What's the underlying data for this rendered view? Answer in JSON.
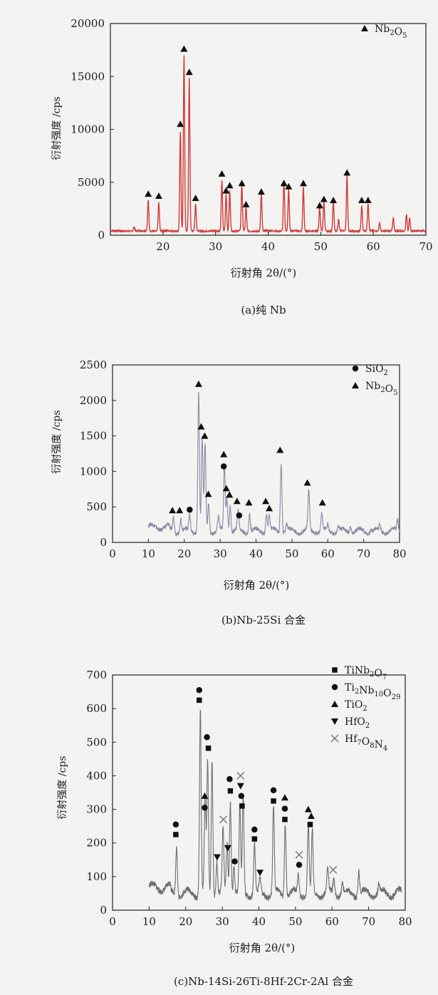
{
  "page": {
    "colors": {
      "background": "#f3f3f1",
      "axis": "#222222",
      "pattern_a": "#d23a3a",
      "pattern_b": "#8a8aa6",
      "pattern_c": "#6e6e6e",
      "marker": "#111111"
    }
  },
  "chart_data": [
    {
      "type": "line",
      "caption": "(a)纯 Nb",
      "xlabel": "衍射角 2θ/(°)",
      "ylabel": "衍射强度 /cps",
      "xlim": [
        10,
        70
      ],
      "ylim": [
        0,
        20000
      ],
      "xticks": [
        20,
        30,
        40,
        50,
        60,
        70
      ],
      "yticks": [
        0,
        5000,
        10000,
        15000,
        20000
      ],
      "ytick_labels": [
        "0",
        "5000",
        "10000",
        "15000",
        "20000"
      ],
      "grid": false,
      "legend_position": "top-right",
      "legend": [
        {
          "marker": "triangle-up",
          "label": "Nb",
          "sub": "2",
          "label2": "O",
          "sub2": "5"
        }
      ],
      "baseline": 400,
      "peaks": [
        {
          "x": 14.5,
          "y": 800
        },
        {
          "x": 17.2,
          "y": 3300
        },
        {
          "x": 19.2,
          "y": 3100
        },
        {
          "x": 23.3,
          "y": 9800
        },
        {
          "x": 24.0,
          "y": 17000
        },
        {
          "x": 25.0,
          "y": 14800
        },
        {
          "x": 26.2,
          "y": 3000
        },
        {
          "x": 31.2,
          "y": 5200
        },
        {
          "x": 32.0,
          "y": 3900
        },
        {
          "x": 32.7,
          "y": 4200
        },
        {
          "x": 35.0,
          "y": 4700
        },
        {
          "x": 35.8,
          "y": 2600
        },
        {
          "x": 38.7,
          "y": 3900
        },
        {
          "x": 43.0,
          "y": 5200
        },
        {
          "x": 43.9,
          "y": 4300
        },
        {
          "x": 46.7,
          "y": 4600
        },
        {
          "x": 49.8,
          "y": 2600
        },
        {
          "x": 50.6,
          "y": 3200
        },
        {
          "x": 52.4,
          "y": 3200
        },
        {
          "x": 53.4,
          "y": 1500
        },
        {
          "x": 55.0,
          "y": 5600
        },
        {
          "x": 57.8,
          "y": 2800
        },
        {
          "x": 59.0,
          "y": 3000
        },
        {
          "x": 61.2,
          "y": 1200
        },
        {
          "x": 63.8,
          "y": 1600
        },
        {
          "x": 66.3,
          "y": 2000
        },
        {
          "x": 66.9,
          "y": 1600
        }
      ],
      "markers": [
        {
          "x": 17.2,
          "y": 3900,
          "type": "triangle-up"
        },
        {
          "x": 19.2,
          "y": 3700,
          "type": "triangle-up"
        },
        {
          "x": 23.3,
          "y": 10500,
          "type": "triangle-up"
        },
        {
          "x": 24.0,
          "y": 17600,
          "type": "triangle-up"
        },
        {
          "x": 25.0,
          "y": 15400,
          "type": "triangle-up"
        },
        {
          "x": 26.2,
          "y": 3500,
          "type": "triangle-up"
        },
        {
          "x": 31.2,
          "y": 5800,
          "type": "triangle-up"
        },
        {
          "x": 32.0,
          "y": 4200,
          "type": "triangle-up"
        },
        {
          "x": 32.7,
          "y": 4700,
          "type": "triangle-up"
        },
        {
          "x": 35.0,
          "y": 4900,
          "type": "triangle-up"
        },
        {
          "x": 35.8,
          "y": 2900,
          "type": "triangle-up"
        },
        {
          "x": 38.7,
          "y": 4100,
          "type": "triangle-up"
        },
        {
          "x": 43.0,
          "y": 4900,
          "type": "triangle-up"
        },
        {
          "x": 43.9,
          "y": 4600,
          "type": "triangle-up"
        },
        {
          "x": 46.7,
          "y": 4900,
          "type": "triangle-up"
        },
        {
          "x": 49.8,
          "y": 2800,
          "type": "triangle-up"
        },
        {
          "x": 50.6,
          "y": 3400,
          "type": "triangle-up"
        },
        {
          "x": 52.4,
          "y": 3300,
          "type": "triangle-up"
        },
        {
          "x": 55.0,
          "y": 5900,
          "type": "triangle-up"
        },
        {
          "x": 57.8,
          "y": 3300,
          "type": "triangle-up"
        },
        {
          "x": 59.0,
          "y": 3300,
          "type": "triangle-up"
        }
      ]
    },
    {
      "type": "line",
      "caption": "(b)Nb-25Si 合金",
      "xlabel": "衍射角 2θ/(°)",
      "ylabel": "衍射强度 /cps",
      "xlim": [
        0,
        80
      ],
      "ylim": [
        0,
        2500
      ],
      "xticks": [
        0,
        10,
        20,
        30,
        40,
        50,
        60,
        70,
        80
      ],
      "yticks": [
        0,
        500,
        1000,
        1500,
        2000,
        2500
      ],
      "ytick_labels": [
        "0",
        "500",
        "1000",
        "1500",
        "2000",
        "2500"
      ],
      "grid": false,
      "legend_position": "top-right",
      "legend": [
        {
          "marker": "circle",
          "label": "SiO",
          "sub": "2",
          "label2": "",
          "sub2": ""
        },
        {
          "marker": "triangle-up",
          "label": "Nb",
          "sub": "2",
          "label2": "O",
          "sub2": "5"
        }
      ],
      "series_x_range": [
        10,
        80
      ],
      "baseline": 160,
      "peaks": [
        {
          "x": 17.0,
          "y": 370
        },
        {
          "x": 19.0,
          "y": 340
        },
        {
          "x": 21.5,
          "y": 380
        },
        {
          "x": 24.0,
          "y": 2100
        },
        {
          "x": 25.0,
          "y": 1450
        },
        {
          "x": 25.8,
          "y": 1370
        },
        {
          "x": 26.8,
          "y": 550
        },
        {
          "x": 29.5,
          "y": 350
        },
        {
          "x": 31.2,
          "y": 1080
        },
        {
          "x": 31.9,
          "y": 640
        },
        {
          "x": 32.8,
          "y": 550
        },
        {
          "x": 35.0,
          "y": 420
        },
        {
          "x": 38.2,
          "y": 420
        },
        {
          "x": 42.9,
          "y": 420
        },
        {
          "x": 43.7,
          "y": 380
        },
        {
          "x": 47.0,
          "y": 1150
        },
        {
          "x": 48.5,
          "y": 260
        },
        {
          "x": 54.7,
          "y": 700
        },
        {
          "x": 58.3,
          "y": 400
        },
        {
          "x": 60.0,
          "y": 240
        },
        {
          "x": 63.0,
          "y": 220
        },
        {
          "x": 66.3,
          "y": 270
        },
        {
          "x": 72.0,
          "y": 200
        },
        {
          "x": 74.5,
          "y": 230
        },
        {
          "x": 79.5,
          "y": 310
        }
      ],
      "markers": [
        {
          "x": 16.7,
          "y": 450,
          "type": "triangle-up"
        },
        {
          "x": 18.7,
          "y": 450,
          "type": "triangle-up"
        },
        {
          "x": 21.5,
          "y": 460,
          "type": "circle"
        },
        {
          "x": 24.0,
          "y": 2230,
          "type": "triangle-up"
        },
        {
          "x": 24.7,
          "y": 1630,
          "type": "triangle-up"
        },
        {
          "x": 25.7,
          "y": 1500,
          "type": "triangle-up"
        },
        {
          "x": 26.7,
          "y": 680,
          "type": "triangle-up"
        },
        {
          "x": 31.0,
          "y": 1240,
          "type": "triangle-up"
        },
        {
          "x": 31.0,
          "y": 1070,
          "type": "circle"
        },
        {
          "x": 31.7,
          "y": 760,
          "type": "triangle-up"
        },
        {
          "x": 32.6,
          "y": 670,
          "type": "triangle-up"
        },
        {
          "x": 34.7,
          "y": 580,
          "type": "triangle-up"
        },
        {
          "x": 35.3,
          "y": 380,
          "type": "circle"
        },
        {
          "x": 38.0,
          "y": 560,
          "type": "triangle-up"
        },
        {
          "x": 42.7,
          "y": 580,
          "type": "triangle-up"
        },
        {
          "x": 43.7,
          "y": 480,
          "type": "triangle-up"
        },
        {
          "x": 46.7,
          "y": 1300,
          "type": "triangle-up"
        },
        {
          "x": 54.3,
          "y": 840,
          "type": "triangle-up"
        },
        {
          "x": 58.5,
          "y": 560,
          "type": "triangle-up"
        }
      ]
    },
    {
      "type": "line",
      "caption": "(c)Nb-14Si-26Ti-8Hf-2Cr-2Al 合金",
      "xlabel": "衍射角 2θ/(°)",
      "ylabel": "衍射强度 /cps",
      "xlim": [
        0,
        80
      ],
      "ylim": [
        0,
        700
      ],
      "xticks": [
        0,
        10,
        20,
        30,
        40,
        50,
        60,
        70,
        80
      ],
      "yticks": [
        0,
        100,
        200,
        300,
        400,
        500,
        600,
        700
      ],
      "ytick_labels": [
        "0",
        "100",
        "200",
        "300",
        "400",
        "500",
        "600",
        "700"
      ],
      "grid": false,
      "legend_position": "top-right",
      "legend": [
        {
          "marker": "square",
          "label": "TiNb",
          "sub": "2",
          "label2": "O",
          "sub2": "7"
        },
        {
          "marker": "circle",
          "label": "Ti",
          "sub": "2",
          "label2": "Nb",
          "sub2": "10",
          "label3": "O",
          "sub3": "29"
        },
        {
          "marker": "triangle-up",
          "label": "TiO",
          "sub": "2",
          "label2": "",
          "sub2": ""
        },
        {
          "marker": "triangle-down",
          "label": "HfO",
          "sub": "2",
          "label2": "",
          "sub2": ""
        },
        {
          "marker": "cross",
          "label": "Hf",
          "sub": "7",
          "label2": "O",
          "sub2": "8",
          "label3": "N",
          "sub3": "4"
        }
      ],
      "series_x_range": [
        10,
        79
      ],
      "baseline": 50,
      "peaks": [
        {
          "x": 17.5,
          "y": 200
        },
        {
          "x": 24.0,
          "y": 600
        },
        {
          "x": 25.3,
          "y": 320
        },
        {
          "x": 26.0,
          "y": 440
        },
        {
          "x": 27.2,
          "y": 450
        },
        {
          "x": 28.5,
          "y": 150
        },
        {
          "x": 30.2,
          "y": 240
        },
        {
          "x": 31.3,
          "y": 200
        },
        {
          "x": 32.2,
          "y": 330
        },
        {
          "x": 33.2,
          "y": 140
        },
        {
          "x": 34.8,
          "y": 300
        },
        {
          "x": 35.7,
          "y": 330
        },
        {
          "x": 38.8,
          "y": 200
        },
        {
          "x": 40.3,
          "y": 90
        },
        {
          "x": 44.0,
          "y": 300
        },
        {
          "x": 47.2,
          "y": 270
        },
        {
          "x": 50.8,
          "y": 110
        },
        {
          "x": 53.5,
          "y": 250
        },
        {
          "x": 54.6,
          "y": 230
        },
        {
          "x": 58.8,
          "y": 120
        },
        {
          "x": 60.5,
          "y": 100
        },
        {
          "x": 62.8,
          "y": 80
        },
        {
          "x": 67.3,
          "y": 120
        },
        {
          "x": 72.8,
          "y": 75
        },
        {
          "x": 77.5,
          "y": 55
        }
      ],
      "markers": [
        {
          "x": 17.3,
          "y": 255,
          "type": "circle"
        },
        {
          "x": 17.3,
          "y": 225,
          "type": "square"
        },
        {
          "x": 23.7,
          "y": 655,
          "type": "circle"
        },
        {
          "x": 23.7,
          "y": 625,
          "type": "square"
        },
        {
          "x": 25.2,
          "y": 340,
          "type": "triangle-up"
        },
        {
          "x": 25.2,
          "y": 305,
          "type": "circle"
        },
        {
          "x": 25.8,
          "y": 515,
          "type": "circle"
        },
        {
          "x": 26.2,
          "y": 482,
          "type": "square"
        },
        {
          "x": 28.6,
          "y": 158,
          "type": "triangle-down"
        },
        {
          "x": 30.3,
          "y": 270,
          "type": "cross"
        },
        {
          "x": 31.5,
          "y": 185,
          "type": "triangle-down"
        },
        {
          "x": 32.0,
          "y": 390,
          "type": "circle"
        },
        {
          "x": 32.2,
          "y": 355,
          "type": "square"
        },
        {
          "x": 33.4,
          "y": 145,
          "type": "circle"
        },
        {
          "x": 35.0,
          "y": 400,
          "type": "cross"
        },
        {
          "x": 35.0,
          "y": 370,
          "type": "triangle-down"
        },
        {
          "x": 35.2,
          "y": 340,
          "type": "circle"
        },
        {
          "x": 35.4,
          "y": 310,
          "type": "square"
        },
        {
          "x": 38.8,
          "y": 240,
          "type": "circle"
        },
        {
          "x": 38.8,
          "y": 212,
          "type": "square"
        },
        {
          "x": 40.3,
          "y": 112,
          "type": "triangle-down"
        },
        {
          "x": 44.0,
          "y": 357,
          "type": "circle"
        },
        {
          "x": 44.0,
          "y": 325,
          "type": "square"
        },
        {
          "x": 47.1,
          "y": 335,
          "type": "triangle-up"
        },
        {
          "x": 47.1,
          "y": 302,
          "type": "circle"
        },
        {
          "x": 47.1,
          "y": 270,
          "type": "square"
        },
        {
          "x": 51.0,
          "y": 165,
          "type": "cross"
        },
        {
          "x": 51.0,
          "y": 135,
          "type": "circle"
        },
        {
          "x": 53.5,
          "y": 300,
          "type": "triangle-up"
        },
        {
          "x": 54.3,
          "y": 280,
          "type": "triangle-up"
        },
        {
          "x": 54.0,
          "y": 255,
          "type": "square"
        },
        {
          "x": 60.3,
          "y": 120,
          "type": "cross"
        }
      ]
    }
  ]
}
